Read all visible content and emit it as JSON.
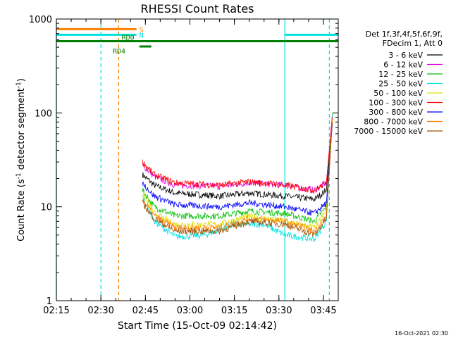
{
  "chart_data": {
    "type": "line",
    "title": "RHESSI Count Rates",
    "xlabel": "Start Time (15-Oct-09 02:14:42)",
    "ylabel_parts": [
      "Count Rate (s",
      "-1",
      " detector segment",
      "-1",
      ")"
    ],
    "yscale": "log",
    "ylim": [
      1,
      1000
    ],
    "xlim_min": [
      135,
      230
    ],
    "x_ticks": [
      {
        "label": "02:15",
        "min": 135
      },
      {
        "label": "02:30",
        "min": 150
      },
      {
        "label": "02:45",
        "min": 165
      },
      {
        "label": "03:00",
        "min": 180
      },
      {
        "label": "03:15",
        "min": 195
      },
      {
        "label": "03:30",
        "min": 210
      },
      {
        "label": "03:45",
        "min": 225
      }
    ],
    "y_ticks": [
      {
        "label": "1",
        "value": 1
      },
      {
        "label": "10",
        "value": 10
      },
      {
        "label": "100",
        "value": 100
      },
      {
        "label": "1000",
        "value": 1000
      }
    ],
    "legend": {
      "header": [
        "Det 1f,3f,4f,5f,6f,9f,",
        "FDecim 1, Att 0"
      ],
      "placement": "right"
    },
    "series": [
      {
        "name": "3 - 6 keV",
        "color": "#000000",
        "values": [
          [
            164,
            22
          ],
          [
            168,
            17
          ],
          [
            175,
            14
          ],
          [
            190,
            13
          ],
          [
            200,
            14
          ],
          [
            212,
            13
          ],
          [
            222,
            12
          ],
          [
            226,
            15
          ],
          [
            228,
            80
          ]
        ]
      },
      {
        "name": "6 - 12 keV",
        "color": "#e000e0",
        "values": [
          [
            164,
            28
          ],
          [
            168,
            21
          ],
          [
            175,
            17
          ],
          [
            190,
            16.5
          ],
          [
            200,
            18
          ],
          [
            212,
            17
          ],
          [
            222,
            15
          ],
          [
            226,
            18
          ],
          [
            228,
            95
          ]
        ]
      },
      {
        "name": "12 - 25 keV",
        "color": "#00c000",
        "values": [
          [
            164,
            15
          ],
          [
            168,
            10
          ],
          [
            175,
            8
          ],
          [
            190,
            8
          ],
          [
            200,
            9
          ],
          [
            212,
            8.5
          ],
          [
            222,
            7
          ],
          [
            226,
            10
          ],
          [
            228,
            100
          ]
        ]
      },
      {
        "name": "25 - 50 keV",
        "color": "#00e0e0",
        "values": [
          [
            164,
            13
          ],
          [
            168,
            7
          ],
          [
            175,
            4.8
          ],
          [
            185,
            5
          ],
          [
            195,
            6.5
          ],
          [
            205,
            6.5
          ],
          [
            212,
            5
          ],
          [
            222,
            4.5
          ],
          [
            226,
            7
          ],
          [
            228,
            95
          ]
        ]
      },
      {
        "name": "50 - 100 keV",
        "color": "#e0e000",
        "values": [
          [
            164,
            14
          ],
          [
            168,
            8.5
          ],
          [
            175,
            6.5
          ],
          [
            190,
            6.5
          ],
          [
            200,
            8
          ],
          [
            212,
            7
          ],
          [
            222,
            6
          ],
          [
            226,
            9
          ],
          [
            228,
            85
          ]
        ]
      },
      {
        "name": "100 - 300 keV",
        "color": "#ff0000",
        "values": [
          [
            164,
            30
          ],
          [
            168,
            22
          ],
          [
            175,
            18
          ],
          [
            190,
            17
          ],
          [
            200,
            18.5
          ],
          [
            212,
            17
          ],
          [
            222,
            15
          ],
          [
            226,
            18
          ],
          [
            228,
            90
          ]
        ]
      },
      {
        "name": "300 - 800 keV",
        "color": "#0000ff",
        "values": [
          [
            164,
            18
          ],
          [
            168,
            13
          ],
          [
            175,
            10.5
          ],
          [
            190,
            10
          ],
          [
            200,
            11
          ],
          [
            212,
            10
          ],
          [
            222,
            8.5
          ],
          [
            226,
            11
          ],
          [
            228,
            75
          ]
        ]
      },
      {
        "name": "800 - 7000 keV",
        "color": "#ff8000",
        "values": [
          [
            164,
            12
          ],
          [
            168,
            8
          ],
          [
            175,
            6
          ],
          [
            190,
            6
          ],
          [
            200,
            7.5
          ],
          [
            212,
            7
          ],
          [
            222,
            5.5
          ],
          [
            226,
            8
          ],
          [
            228,
            85
          ]
        ]
      },
      {
        "name": "7000 - 15000 keV",
        "color": "#a05000",
        "values": [
          [
            164,
            11
          ],
          [
            168,
            7.5
          ],
          [
            175,
            5.5
          ],
          [
            190,
            5.5
          ],
          [
            200,
            7
          ],
          [
            212,
            6.5
          ],
          [
            222,
            5
          ],
          [
            226,
            7.5
          ],
          [
            228,
            80
          ]
        ]
      }
    ],
    "annotations": [
      {
        "label": "S",
        "color": "#ff8000",
        "y": 780,
        "x0": 135,
        "x1": 162
      },
      {
        "label": "N",
        "color": "#00e0e0",
        "y": 680,
        "x0": 135,
        "x1": 162
      },
      {
        "label": "RD0",
        "color": "#008000",
        "y": 580,
        "x0": 135,
        "x1": 230
      },
      {
        "label": "RD4",
        "color": "#008000",
        "y": 510,
        "x0": 163,
        "x1": 167
      },
      {
        "label": "",
        "color": "#00e0e0",
        "y": 680,
        "x0": 212,
        "x1": 230
      }
    ],
    "vlines": [
      {
        "x": 135,
        "color": "#00e0e0",
        "style": "solid"
      },
      {
        "x": 150,
        "color": "#00e0e0",
        "style": "dashed"
      },
      {
        "x": 156,
        "color": "#ff8000",
        "style": "dashed"
      },
      {
        "x": 212,
        "color": "#00e0e0",
        "style": "solid"
      },
      {
        "x": 227,
        "color": "#00e0e0",
        "style": "dashed"
      }
    ],
    "footer_stamp": "16-Oct-2021 02:30"
  }
}
